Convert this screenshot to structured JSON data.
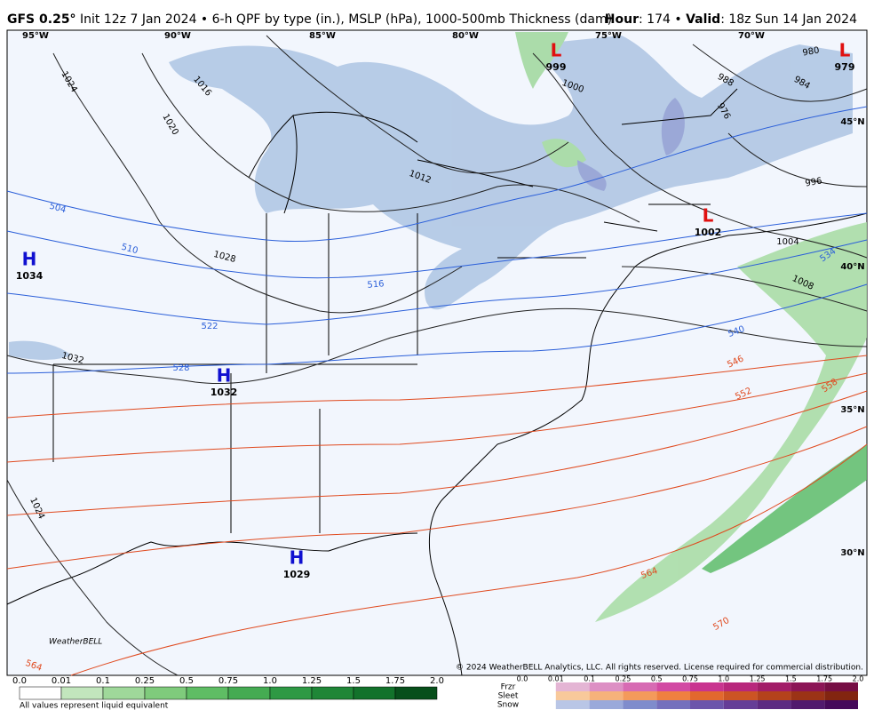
{
  "header": {
    "model": "GFS 0.25°",
    "description": "Init 12z 7 Jan 2024 • 6-h QPF by type (in.), MSLP (hPa), 1000-500mb Thickness (dam)",
    "hour_label": "Hour",
    "hour_value": ": 174 • ",
    "valid_label": "Valid",
    "valid_value": ": 18z Sun 14 Jan 2024"
  },
  "map": {
    "lon_labels": [
      "95°W",
      "90°W",
      "85°W",
      "80°W",
      "75°W",
      "70°W"
    ],
    "lat_labels": [
      "45°N",
      "40°N",
      "35°N",
      "30°N"
    ],
    "pressure_centers": [
      {
        "letter": "H",
        "value": "1034"
      },
      {
        "letter": "H",
        "value": "1032"
      },
      {
        "letter": "H",
        "value": "1029"
      },
      {
        "letter": "L",
        "value": "999"
      },
      {
        "letter": "L",
        "value": "1002"
      },
      {
        "letter": "L",
        "value": "979"
      }
    ],
    "isobar_labels": [
      "1024",
      "1020",
      "1016",
      "1012",
      "1028",
      "1032",
      "1024",
      "1000",
      "988",
      "984",
      "980",
      "976",
      "996",
      "1004",
      "1008"
    ],
    "thickness_labels": [
      "504",
      "510",
      "516",
      "522",
      "528",
      "534",
      "540",
      "546",
      "552",
      "558",
      "564",
      "570",
      "564"
    ],
    "logo": "WeatherBELL",
    "copyright": "© 2024 WeatherBELL Analytics, LLC. All rights reserved. License required for commercial distribution."
  },
  "legend": {
    "qpf_ticks": [
      "0.0",
      "0.01",
      "0.1",
      "0.25",
      "0.5",
      "0.75",
      "1.0",
      "1.25",
      "1.5",
      "1.75",
      "2.0"
    ],
    "note": "All values represent liquid equivalent",
    "type_labels": [
      "Frzr",
      "Sleet",
      "Snow"
    ],
    "type_ticks": [
      "0.0",
      "0.01",
      "0.1",
      "0.25",
      "0.5",
      "0.75",
      "1.0",
      "1.25",
      "1.5",
      "1.75",
      "2.0"
    ]
  }
}
